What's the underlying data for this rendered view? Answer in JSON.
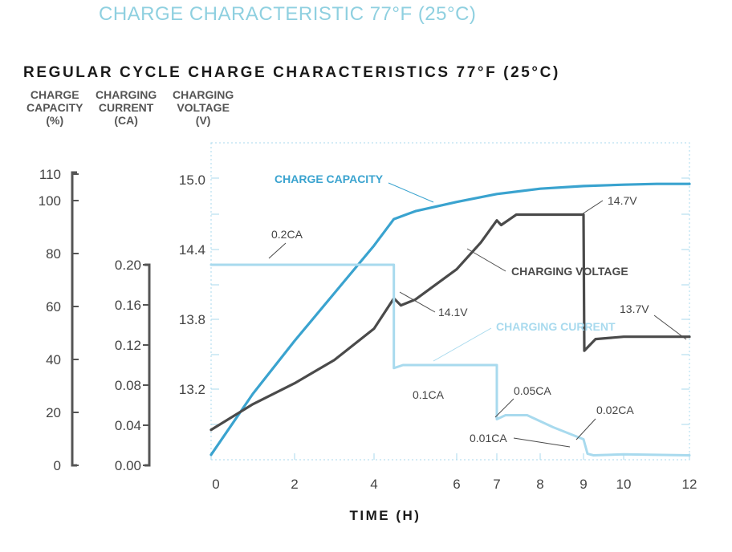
{
  "page_title": "CHARGE CHARACTERISTIC 77°F (25°C)",
  "chart_title": "REGULAR CYCLE CHARGE CHARACTERISTICS 77°F (25°C)",
  "axis_headers": {
    "capacity": [
      "CHARGE",
      "CAPACITY",
      "(%)"
    ],
    "current": [
      "CHARGING",
      "CURRENT",
      "(CA)"
    ],
    "voltage": [
      "CHARGING",
      "VOLTAGE",
      "(V)"
    ]
  },
  "colors": {
    "capacity": "#3aa3cf",
    "current": "#a8daee",
    "voltage": "#4a4a4a",
    "axis": "#555555",
    "grid": "#a8daee"
  },
  "chart_data": {
    "type": "line",
    "title": "REGULAR CYCLE CHARGE CHARACTERISTICS 77°F (25°C)",
    "xlabel": "TIME (H)",
    "x_ticks": [
      {
        "label": "0",
        "value": 0
      },
      {
        "label": "2",
        "value": 2
      },
      {
        "label": "4",
        "value": 4
      },
      {
        "label": "6",
        "value": 6
      },
      {
        "label": "7",
        "value": 7
      },
      {
        "label": "8",
        "value": 8
      },
      {
        "label": "9",
        "value": 9
      },
      {
        "label": "10",
        "value": 10
      },
      {
        "label": "12",
        "value": 12
      }
    ],
    "x_range": [
      0,
      12
    ],
    "axes": {
      "capacity": {
        "label": "CHARGE CAPACITY (%)",
        "ticks": [
          "0",
          "20",
          "40",
          "60",
          "80",
          "100",
          "110"
        ],
        "range": [
          0,
          110
        ]
      },
      "current": {
        "label": "CHARGING CURRENT (CA)",
        "ticks": [
          "0.00",
          "0.04",
          "0.08",
          "0.12",
          "0.16",
          "0.20"
        ],
        "range": [
          0,
          0.2
        ]
      },
      "voltage": {
        "label": "CHARGING VOLTAGE (V)",
        "ticks": [
          "13.2",
          "13.8",
          "14.4",
          "15.0"
        ],
        "range": [
          12.61,
          15.28
        ]
      }
    },
    "series": [
      {
        "name": "CHARGE CAPACITY",
        "axis": "capacity",
        "points": [
          [
            0,
            4
          ],
          [
            1,
            27
          ],
          [
            2,
            47
          ],
          [
            3,
            65
          ],
          [
            4,
            83
          ],
          [
            4.48,
            93
          ],
          [
            5,
            96
          ],
          [
            6,
            99.5
          ],
          [
            7,
            102.5
          ],
          [
            8,
            104.5
          ],
          [
            9,
            105.5
          ],
          [
            10,
            106
          ],
          [
            11,
            106.3
          ],
          [
            12,
            106.3
          ]
        ]
      },
      {
        "name": "CHARGING VOLTAGE",
        "axis": "voltage",
        "points": [
          [
            0,
            12.85
          ],
          [
            1,
            13.07
          ],
          [
            2,
            13.25
          ],
          [
            3,
            13.45
          ],
          [
            4,
            13.72
          ],
          [
            4.48,
            13.98
          ],
          [
            4.65,
            13.92
          ],
          [
            5,
            13.97
          ],
          [
            6,
            14.23
          ],
          [
            6.6,
            14.46
          ],
          [
            7,
            14.65
          ],
          [
            7.1,
            14.61
          ],
          [
            7.45,
            14.7
          ],
          [
            9,
            14.7
          ],
          [
            9.02,
            13.53
          ],
          [
            9.3,
            13.63
          ],
          [
            10,
            13.65
          ],
          [
            12,
            13.65
          ]
        ]
      },
      {
        "name": "CHARGING CURRENT",
        "axis": "current",
        "points": [
          [
            0,
            0.2
          ],
          [
            4.48,
            0.2
          ],
          [
            4.48,
            0.097
          ],
          [
            4.7,
            0.1
          ],
          [
            7.0,
            0.1
          ],
          [
            7.0,
            0.046
          ],
          [
            7.2,
            0.05
          ],
          [
            7.7,
            0.05
          ],
          [
            8.3,
            0.038
          ],
          [
            9.0,
            0.026
          ],
          [
            9.1,
            0.0115
          ],
          [
            9.25,
            0.01
          ],
          [
            10,
            0.011
          ],
          [
            12,
            0.01
          ]
        ]
      }
    ],
    "annotations": {
      "capacity_label": "CHARGE CAPACITY",
      "voltage_label": "CHARGING VOLTAGE",
      "current_label": "CHARGING CURRENT",
      "v_14_7": "14.7V",
      "v_14_1": "14.1V",
      "v_13_7": "13.7V",
      "c_0_2": "0.2CA",
      "c_0_1": "0.1CA",
      "c_0_05": "0.05CA",
      "c_0_02": "0.02CA",
      "c_0_01": "0.01CA"
    }
  }
}
